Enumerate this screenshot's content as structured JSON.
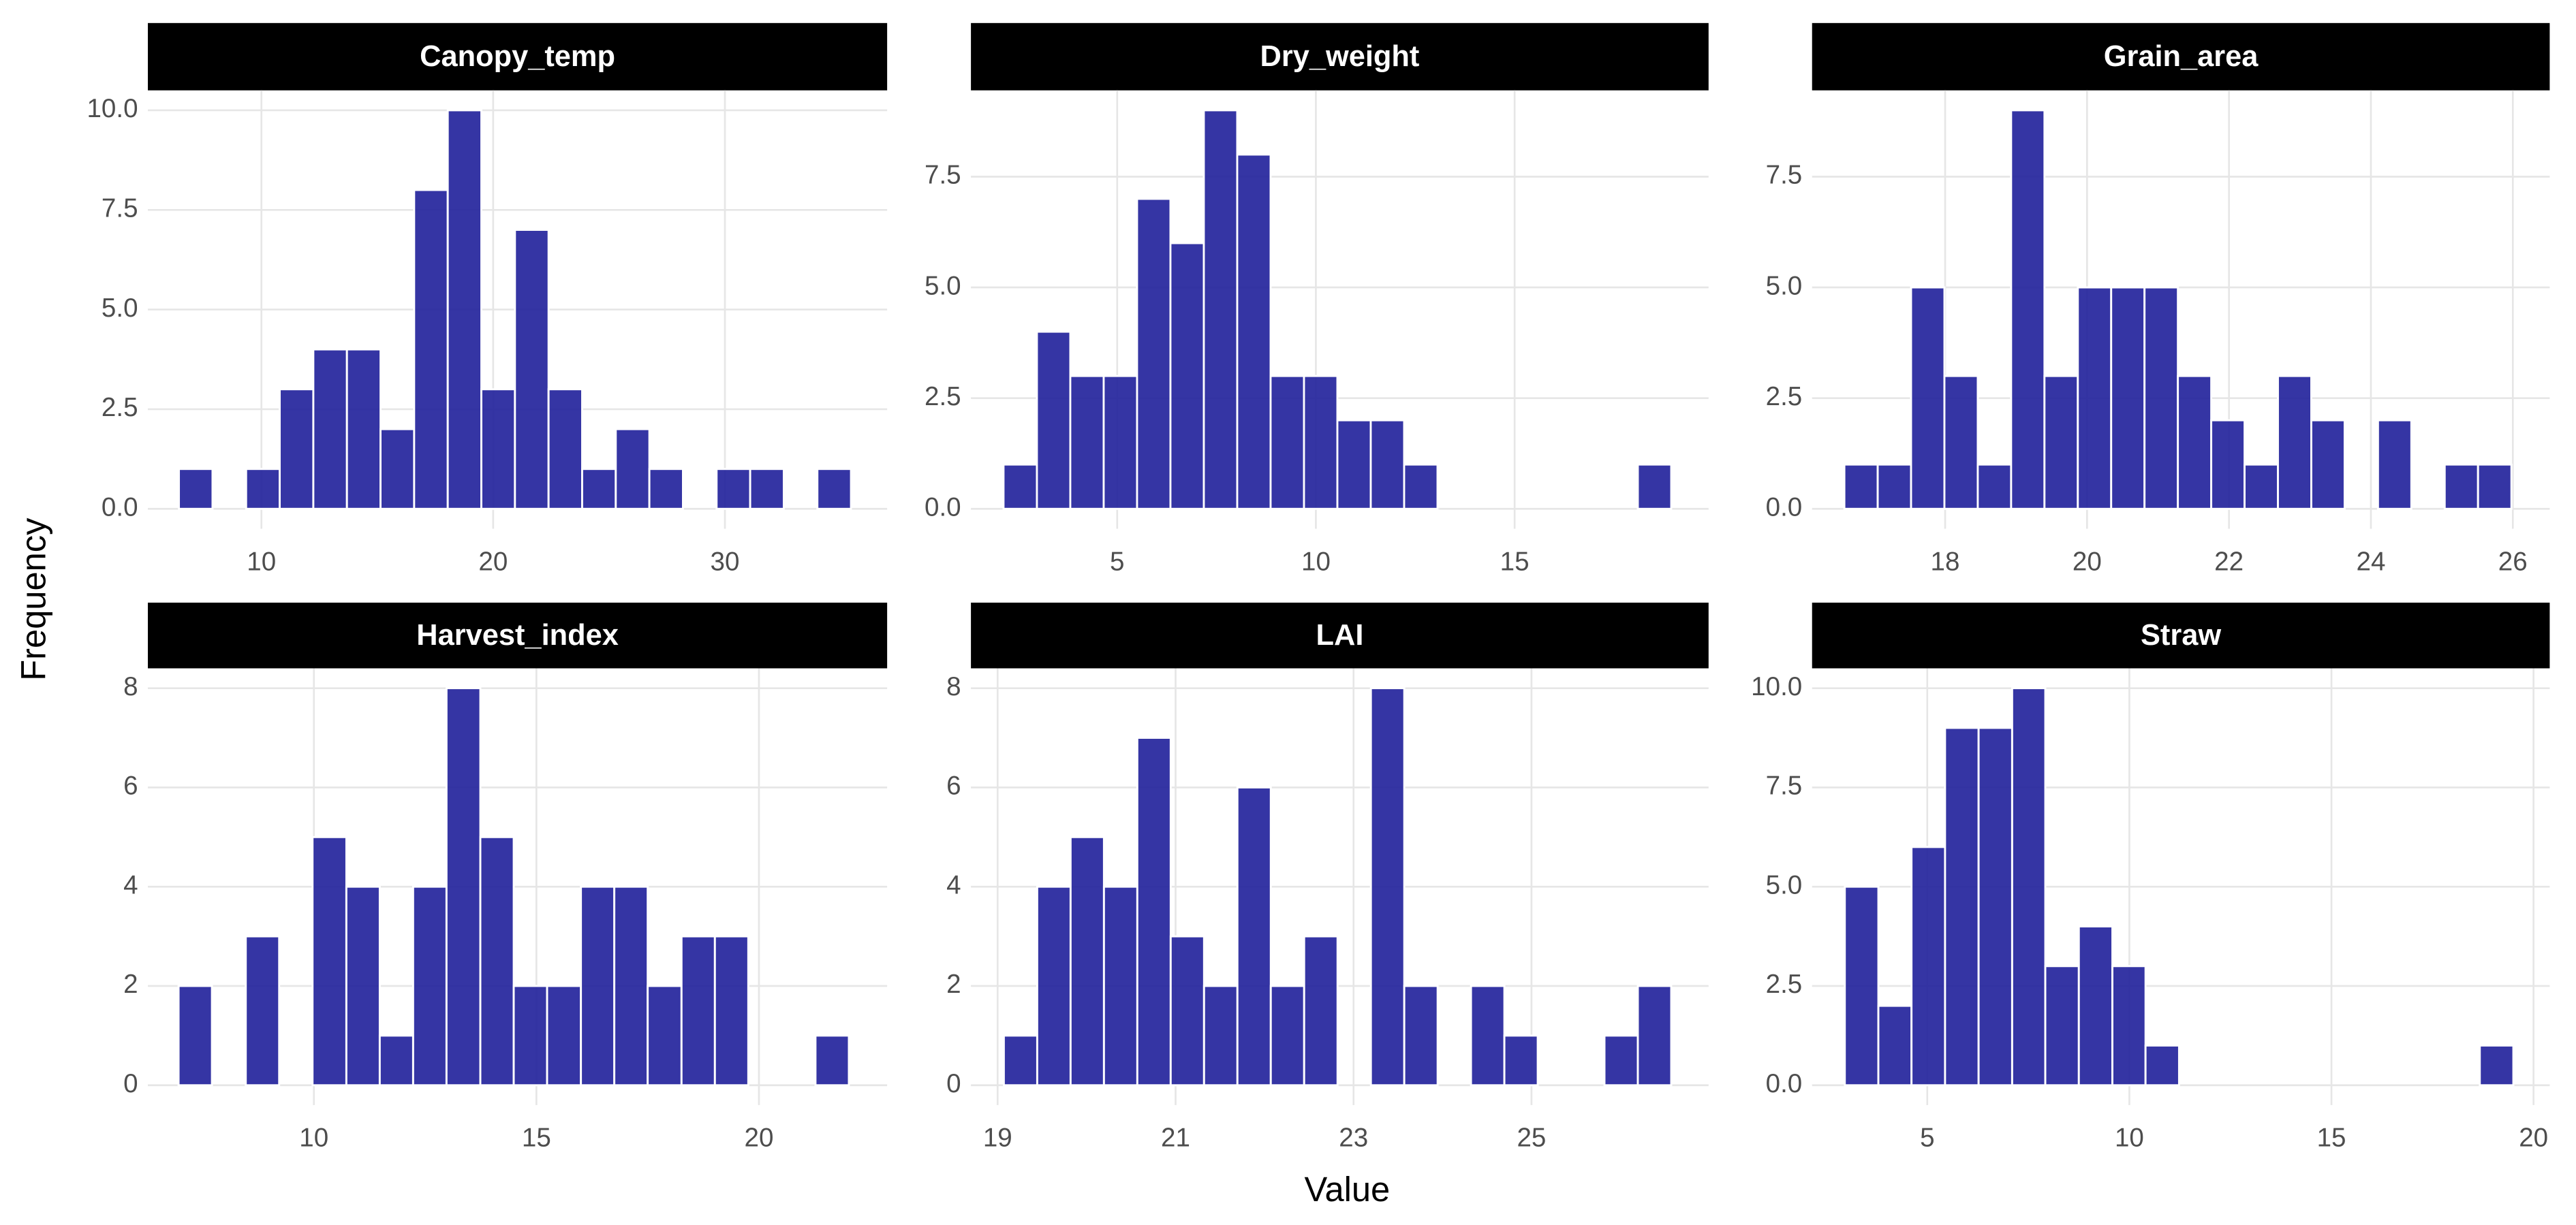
{
  "xlabel": "Value",
  "ylabel": "Frequency",
  "chart_data": [
    {
      "type": "histogram",
      "title": "Canopy_temp",
      "color": "#1f1f9a",
      "grid": true,
      "bins": [
        6.44,
        7.89,
        9.34,
        10.79,
        12.24,
        13.69,
        15.14,
        16.59,
        18.04,
        19.49,
        20.94,
        22.39,
        23.84,
        25.29,
        26.74,
        28.19,
        29.64,
        31.09,
        32.54,
        33.99,
        35.44
      ],
      "values": [
        1,
        0,
        1,
        3,
        4,
        4,
        2,
        8,
        10,
        3,
        7,
        3,
        1,
        2,
        1,
        0,
        1,
        1,
        0,
        1
      ],
      "xlim": [
        5.1,
        37.0
      ],
      "ylim": [
        -0.5,
        10.5
      ],
      "xticks": [
        10,
        20,
        30
      ],
      "yticks": [
        {
          "value": 0,
          "label": "0.0"
        },
        {
          "value": 2.5,
          "label": "2.5"
        },
        {
          "value": 5,
          "label": "5.0"
        },
        {
          "value": 7.5,
          "label": "7.5"
        },
        {
          "value": 10,
          "label": "10.0"
        }
      ]
    },
    {
      "type": "histogram",
      "title": "Dry_weight",
      "color": "#1f1f9a",
      "grid": true,
      "bins": [
        2.14,
        2.98,
        3.82,
        4.66,
        5.5,
        6.34,
        7.18,
        8.02,
        8.86,
        9.7,
        10.54,
        11.38,
        12.22,
        13.06,
        13.9,
        14.74,
        15.58,
        16.42,
        17.26,
        18.1,
        18.94
      ],
      "values": [
        1,
        4,
        3,
        3,
        7,
        6,
        9,
        8,
        3,
        3,
        2,
        2,
        1,
        0,
        0,
        0,
        0,
        0,
        0,
        1
      ],
      "xlim": [
        1.32,
        19.88
      ],
      "ylim": [
        -0.45,
        9.45
      ],
      "xticks": [
        5,
        10,
        15
      ],
      "yticks": [
        {
          "value": 0,
          "label": "0.0"
        },
        {
          "value": 2.5,
          "label": "2.5"
        },
        {
          "value": 5,
          "label": "5.0"
        },
        {
          "value": 7.5,
          "label": "7.5"
        }
      ]
    },
    {
      "type": "histogram",
      "title": "Grain_area",
      "color": "#1f1f9a",
      "grid": true,
      "bins": [
        16.58,
        17.05,
        17.52,
        17.99,
        18.46,
        18.93,
        19.4,
        19.87,
        20.34,
        20.81,
        21.28,
        21.75,
        22.22,
        22.69,
        23.16,
        23.63,
        24.1,
        24.57,
        25.04,
        25.51,
        25.98
      ],
      "values": [
        1,
        1,
        5,
        3,
        1,
        9,
        3,
        5,
        5,
        5,
        3,
        2,
        1,
        3,
        2,
        0,
        2,
        0,
        1,
        1
      ],
      "xlim": [
        16.125,
        26.52
      ],
      "ylim": [
        -0.45,
        9.45
      ],
      "xticks": [
        18,
        20,
        22,
        24,
        26
      ],
      "yticks": [
        {
          "value": 0,
          "label": "0.0"
        },
        {
          "value": 2.5,
          "label": "2.5"
        },
        {
          "value": 5,
          "label": "5.0"
        },
        {
          "value": 7.5,
          "label": "7.5"
        }
      ]
    },
    {
      "type": "histogram",
      "title": "Harvest_index",
      "color": "#1f1f9a",
      "grid": true,
      "bins": [
        6.96,
        7.71,
        8.47,
        9.22,
        9.97,
        10.73,
        11.48,
        12.23,
        12.98,
        13.74,
        14.49,
        15.24,
        16.0,
        16.75,
        17.5,
        18.26,
        19.01,
        19.76,
        20.51,
        21.27,
        22.02
      ],
      "values": [
        2,
        0,
        3,
        0,
        5,
        4,
        1,
        4,
        8,
        5,
        2,
        2,
        4,
        4,
        2,
        3,
        3,
        0,
        0,
        1
      ],
      "xlim": [
        6.27,
        22.88
      ],
      "ylim": [
        -0.4,
        8.4
      ],
      "xticks": [
        10,
        15,
        20
      ],
      "yticks": [
        0,
        2,
        4,
        6,
        8
      ]
    },
    {
      "type": "histogram",
      "title": "LAI",
      "color": "#1f1f9a",
      "grid": true,
      "bins": [
        19.07,
        19.445,
        19.82,
        20.195,
        20.57,
        20.945,
        21.32,
        21.695,
        22.07,
        22.445,
        22.82,
        23.195,
        23.57,
        23.945,
        24.32,
        24.695,
        25.07,
        25.445,
        25.82,
        26.195,
        26.57
      ],
      "values": [
        1,
        4,
        5,
        4,
        7,
        3,
        2,
        6,
        2,
        3,
        0,
        8,
        2,
        0,
        2,
        1,
        0,
        0,
        1,
        2
      ],
      "xlim": [
        18.7,
        26.99
      ],
      "ylim": [
        -0.4,
        8.4
      ],
      "xticks": [
        19,
        21,
        23,
        25
      ],
      "yticks": [
        0,
        2,
        4,
        6,
        8
      ]
    },
    {
      "type": "histogram",
      "title": "Straw",
      "color": "#1f1f9a",
      "grid": true,
      "bins": [
        2.96,
        3.79,
        4.61,
        5.44,
        6.27,
        7.1,
        7.92,
        8.75,
        9.58,
        10.4,
        11.23,
        12.06,
        12.88,
        13.71,
        14.54,
        15.37,
        16.19,
        17.02,
        17.85,
        18.67,
        19.5
      ],
      "values": [
        5,
        2,
        6,
        9,
        9,
        10,
        3,
        4,
        3,
        1,
        0,
        0,
        0,
        0,
        0,
        0,
        0,
        0,
        0,
        1
      ],
      "xlim": [
        2.15,
        20.4
      ],
      "ylim": [
        -0.5,
        10.5
      ],
      "xticks": [
        5,
        10,
        15,
        20
      ],
      "yticks": [
        {
          "value": 0,
          "label": "0.0"
        },
        {
          "value": 2.5,
          "label": "2.5"
        },
        {
          "value": 5,
          "label": "5.0"
        },
        {
          "value": 7.5,
          "label": "7.5"
        },
        {
          "value": 10,
          "label": "10.0"
        }
      ]
    }
  ]
}
